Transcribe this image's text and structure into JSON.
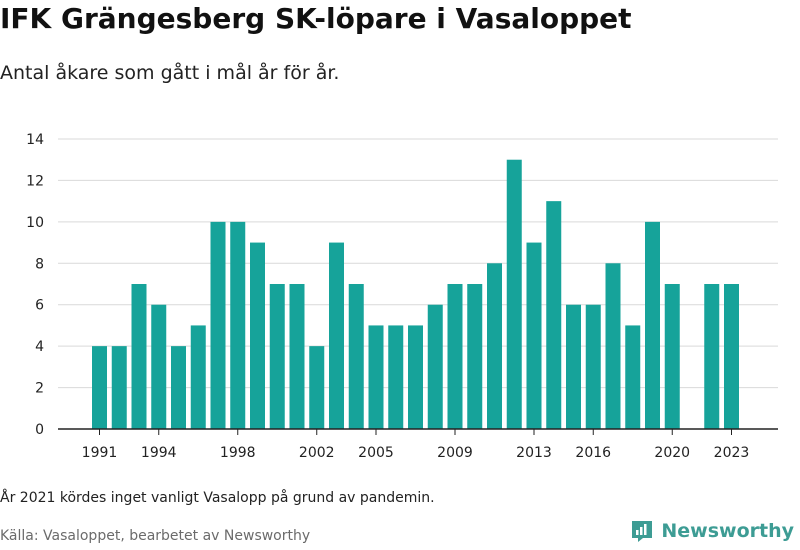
{
  "header": {
    "title": "IFK Grängesberg SK-löpare i Vasaloppet",
    "subtitle": "Antal åkare som gått i mål år för år."
  },
  "footer": {
    "note": "År 2021 kördes inget vanligt Vasalopp på grund av pandemin.",
    "source": "Källa: Vasaloppet, bearbetet av Newsworthy",
    "brand": "Newsworthy"
  },
  "colors": {
    "bar": "#16a39a",
    "grid": "#d9d9d9",
    "axis": "#222222",
    "brand": "#3d9c94"
  },
  "chart_data": {
    "type": "bar",
    "x": [
      1991,
      1992,
      1993,
      1994,
      1995,
      1996,
      1997,
      1998,
      1999,
      2000,
      2001,
      2002,
      2003,
      2004,
      2005,
      2006,
      2007,
      2008,
      2009,
      2010,
      2011,
      2012,
      2013,
      2014,
      2015,
      2016,
      2017,
      2018,
      2019,
      2020,
      2021,
      2022,
      2023
    ],
    "values": [
      4,
      4,
      7,
      6,
      4,
      5,
      10,
      10,
      9,
      7,
      7,
      4,
      9,
      7,
      5,
      5,
      5,
      6,
      7,
      7,
      8,
      13,
      9,
      11,
      6,
      6,
      8,
      5,
      10,
      7,
      null,
      7,
      7
    ],
    "x_ticks": [
      1991,
      1994,
      1998,
      2002,
      2005,
      2009,
      2013,
      2016,
      2020,
      2023
    ],
    "y_ticks": [
      0,
      2,
      4,
      6,
      8,
      10,
      12,
      14
    ],
    "ylim": [
      0,
      14
    ],
    "grid": true,
    "legend": "none"
  }
}
